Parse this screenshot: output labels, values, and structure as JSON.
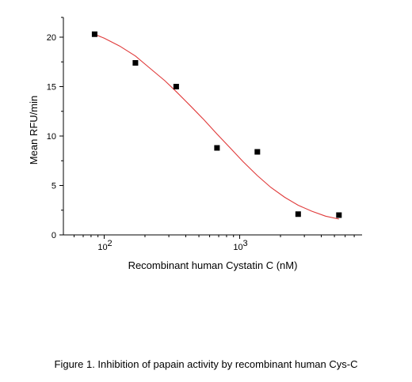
{
  "chart_data": {
    "type": "scatter",
    "xlabel": "Recombinant human Cystatin C (nM)",
    "ylabel": "Mean RFU/min",
    "xscale": "log",
    "xlim": [
      50,
      8000
    ],
    "ylim": [
      0,
      22
    ],
    "xticks": [
      {
        "value": 100,
        "base": "10",
        "exp": "2"
      },
      {
        "value": 1000,
        "base": "10",
        "exp": "3"
      }
    ],
    "yticks": [
      0,
      5,
      10,
      15,
      20
    ],
    "grid": false,
    "legend": "none",
    "series": [
      {
        "marker": "square",
        "color": "#000000",
        "x": [
          85,
          170,
          340,
          680,
          1350,
          2700,
          5400
        ],
        "y": [
          20.3,
          17.4,
          15.0,
          8.8,
          8.4,
          2.1,
          2.0
        ]
      }
    ],
    "fit_curve": {
      "type": "sigmoid",
      "color": "#e03a3a",
      "x": [
        85,
        100,
        130,
        170,
        220,
        280,
        340,
        430,
        540,
        680,
        850,
        1060,
        1350,
        1700,
        2150,
        2700,
        3400,
        4300,
        5400
      ],
      "y": [
        20.3,
        19.9,
        19.1,
        18.1,
        16.8,
        15.6,
        14.5,
        13.1,
        11.7,
        10.2,
        8.8,
        7.4,
        6.0,
        4.8,
        3.8,
        3.0,
        2.4,
        1.9,
        1.6
      ]
    }
  },
  "caption": "Figure 1. Inhibition of papain activity by recombinant human Cys-C"
}
